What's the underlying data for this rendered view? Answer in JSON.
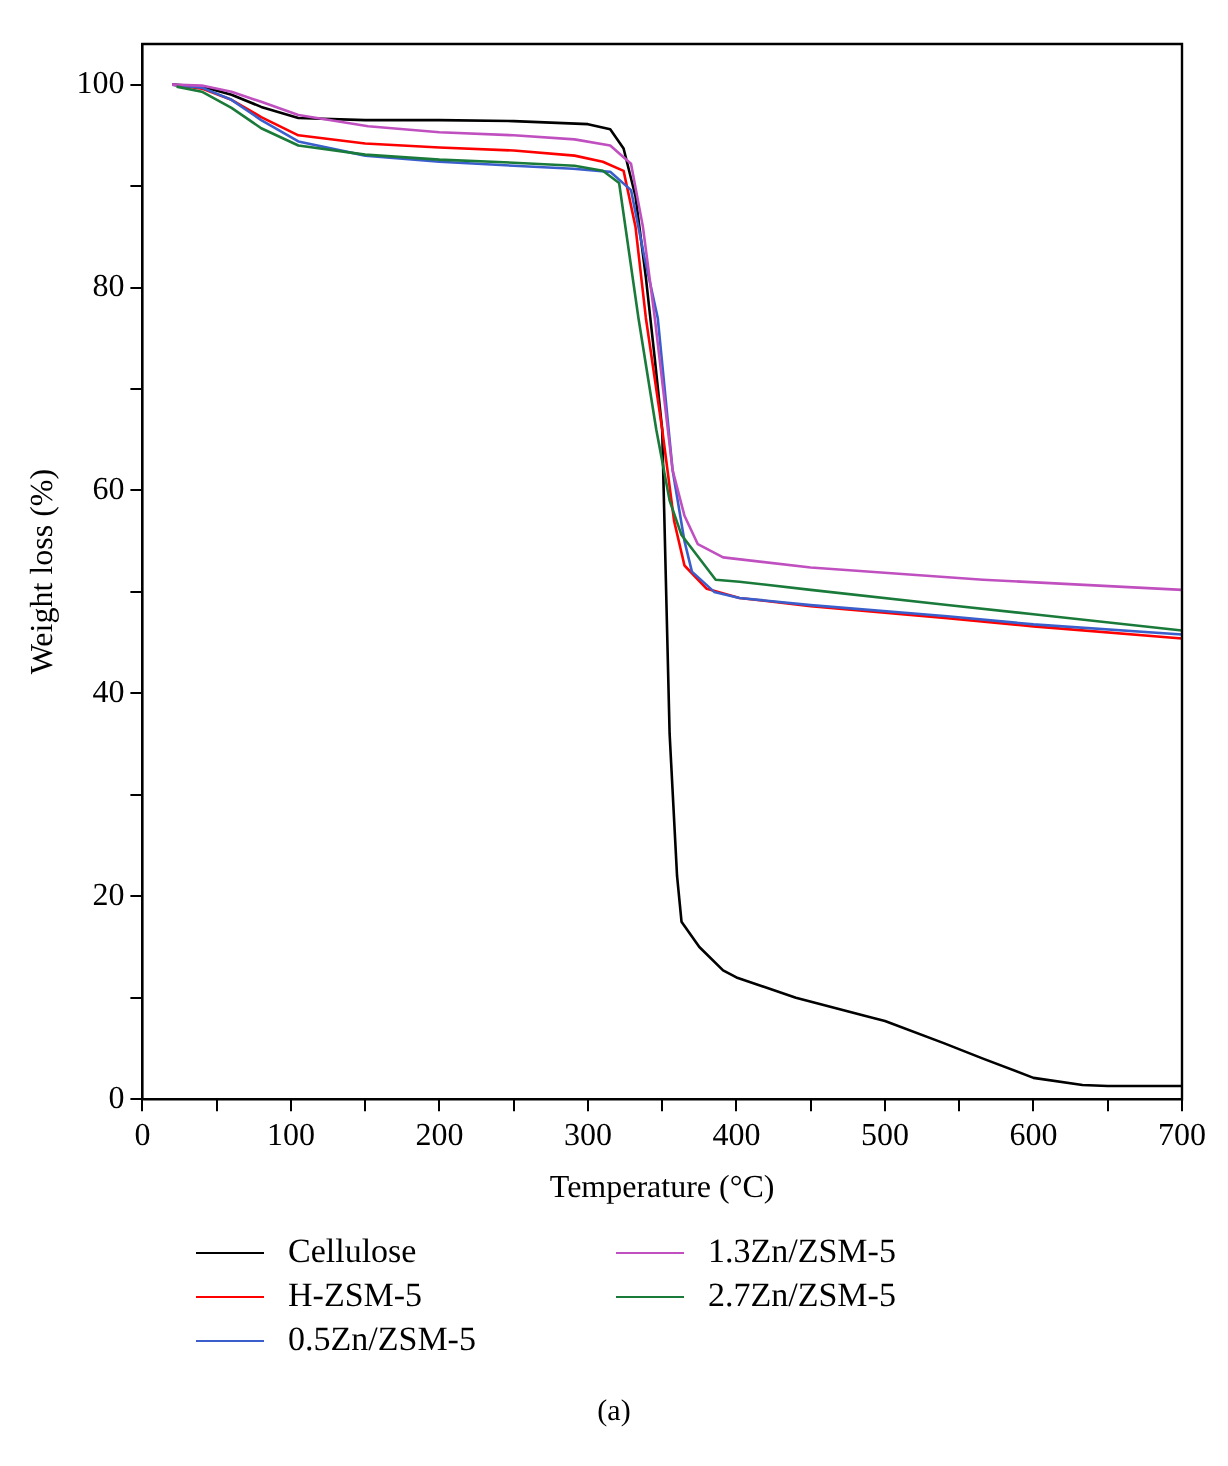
{
  "chart_data": {
    "type": "line",
    "xlabel": "Temperature (°C)",
    "ylabel": "Weight loss (%)",
    "xlim": [
      0,
      700
    ],
    "ylim": [
      0,
      104
    ],
    "xticks": [
      0,
      {
        "value": 50,
        "label": null
      },
      100,
      {
        "value": 150,
        "label": null
      },
      200,
      {
        "value": 250,
        "label": null
      },
      300,
      {
        "value": 350,
        "label": null
      },
      400,
      {
        "value": 450,
        "label": null
      },
      500,
      {
        "value": 550,
        "label": null
      },
      600,
      {
        "value": 650,
        "label": null
      },
      700
    ],
    "yticks": [
      0,
      {
        "value": 10,
        "label": null
      },
      20,
      {
        "value": 30,
        "label": null
      },
      40,
      {
        "value": 50,
        "label": null
      },
      60,
      {
        "value": 70,
        "label": null
      },
      80,
      {
        "value": 90,
        "label": null
      },
      100
    ],
    "grid": false,
    "legend": "bottom",
    "marker": "none",
    "line_style": "solid",
    "annotations": [
      "(a)"
    ],
    "series": [
      {
        "name": "Cellulose",
        "color": "#000000",
        "x": [
          20,
          40,
          60,
          80,
          105,
          150,
          200,
          250,
          300,
          315,
          324,
          332,
          339,
          345,
          350,
          355,
          360,
          363,
          375,
          391,
          400,
          440,
          500,
          540,
          566,
          600,
          633,
          650,
          700
        ],
        "values": [
          100,
          99.8,
          99,
          97.8,
          96.7,
          96.5,
          96.5,
          96.4,
          96.1,
          95.6,
          93.7,
          89,
          81,
          73,
          66,
          36,
          22,
          17.5,
          15,
          12.7,
          12,
          10,
          7.7,
          5.5,
          4,
          2.1,
          1.4,
          1.3,
          1.3
        ]
      },
      {
        "name": "H-ZSM-5",
        "color": "#ff0000",
        "x": [
          20,
          40,
          60,
          80,
          105,
          150,
          200,
          250,
          291,
          310,
          324,
          332,
          339,
          350,
          358,
          365,
          380,
          402,
          450,
          542,
          600,
          700
        ],
        "values": [
          100,
          99.6,
          98.5,
          96.8,
          95,
          94.2,
          93.8,
          93.5,
          93,
          92.4,
          91.5,
          86,
          77,
          66,
          57,
          52.6,
          50.3,
          49.4,
          48.6,
          47.4,
          46.6,
          45.4
        ]
      },
      {
        "name": "0.5Zn/ZSM-5",
        "color": "#3a5fcd",
        "x": [
          20,
          40,
          60,
          80,
          105,
          150,
          200,
          250,
          290,
          315,
          329,
          338,
          347,
          357,
          365,
          370,
          385,
          402,
          450,
          542,
          600,
          700
        ],
        "values": [
          100,
          99.7,
          98.5,
          96.5,
          94.4,
          93,
          92.4,
          92,
          91.7,
          91.4,
          89.6,
          83,
          77,
          62,
          55,
          52,
          50,
          49.4,
          48.7,
          47.6,
          46.8,
          45.8
        ]
      },
      {
        "name": "1.3Zn/ZSM-5",
        "color": "#c050c0",
        "x": [
          20,
          40,
          60,
          80,
          105,
          152,
          200,
          250,
          291,
          315,
          329,
          337,
          345,
          357,
          365,
          374,
          391,
          450,
          566,
          700
        ],
        "values": [
          100,
          99.9,
          99.3,
          98.3,
          97,
          95.9,
          95.3,
          95,
          94.6,
          94,
          92.2,
          86,
          77,
          62,
          57.5,
          54.7,
          53.4,
          52.4,
          51.2,
          50.2
        ]
      },
      {
        "name": "2.7Zn/ZSM-5",
        "color": "#1a7a3a",
        "x": [
          23,
          40,
          60,
          80,
          105,
          150,
          200,
          250,
          291,
          310,
          321,
          334,
          346,
          355,
          363,
          386,
          402,
          450,
          542,
          600,
          700
        ],
        "values": [
          99.8,
          99.3,
          97.7,
          95.7,
          94,
          93.1,
          92.6,
          92.3,
          92,
          91.5,
          90.3,
          77,
          66,
          59,
          55.6,
          51.2,
          51,
          50.2,
          48.7,
          47.8,
          46.2
        ]
      }
    ]
  }
}
